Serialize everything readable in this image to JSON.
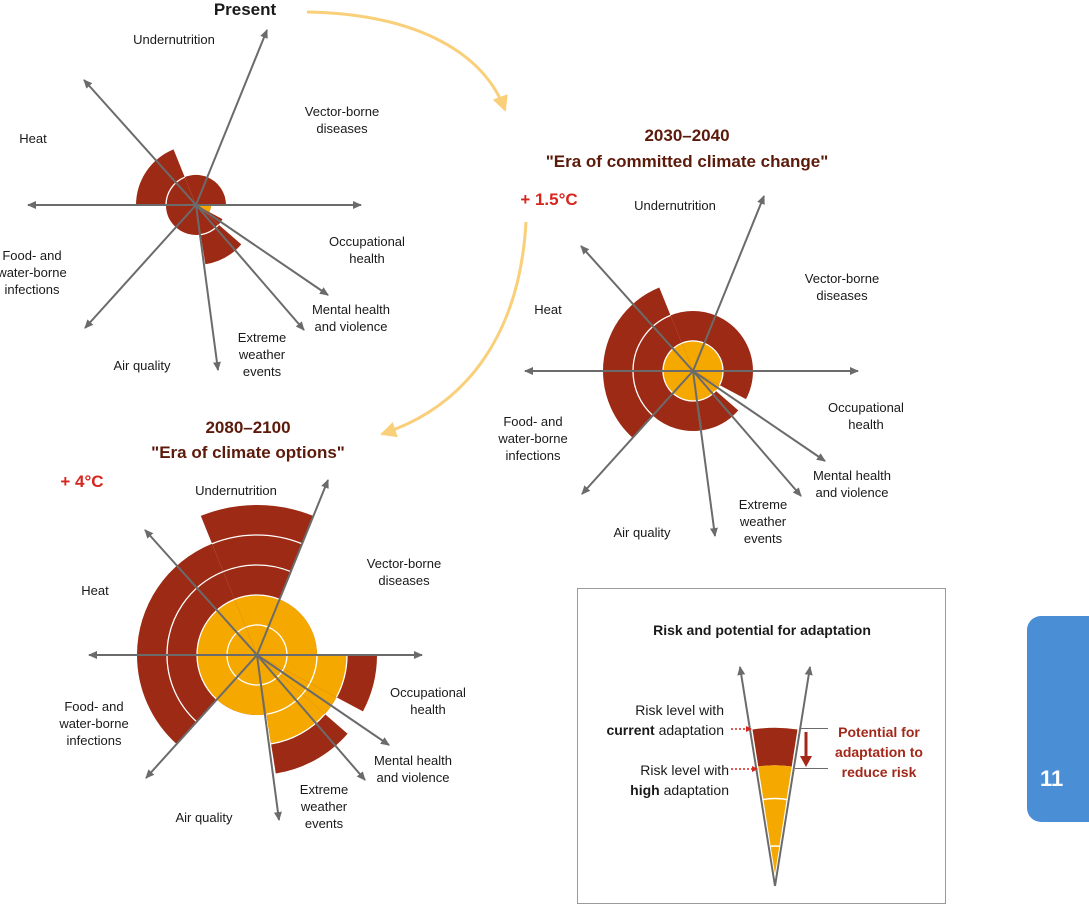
{
  "diagrams": [
    {
      "title": "Present",
      "subtitle": "",
      "temperature": "",
      "sectors": [
        {
          "label": "Undernutrition",
          "current": 1,
          "high": 0
        },
        {
          "label": "Vector-borne diseases",
          "current": 1,
          "high": 0
        },
        {
          "label": "Occupational health",
          "current": 0.5,
          "high": 0.5
        },
        {
          "label": "Mental health and violence",
          "current": 1,
          "high": 0
        },
        {
          "label": "Extreme weather events",
          "current": 2,
          "high": 0
        },
        {
          "label": "Air quality",
          "current": 1,
          "high": 0
        },
        {
          "label": "Food- and water-borne infections",
          "current": 1,
          "high": 0
        },
        {
          "label": "Heat",
          "current": 2,
          "high": 0
        }
      ]
    },
    {
      "title": "2030–2040",
      "subtitle": "\"Era of committed climate change\"",
      "temperature": "+ 1.5°C",
      "sectors": [
        {
          "label": "Undernutrition",
          "current": 2,
          "high": 1
        },
        {
          "label": "Vector-borne diseases",
          "current": 2,
          "high": 1
        },
        {
          "label": "Occupational health",
          "current": 2,
          "high": 1
        },
        {
          "label": "Mental health and violence",
          "current": 1,
          "high": 1
        },
        {
          "label": "Extreme weather events",
          "current": 2,
          "high": 1
        },
        {
          "label": "Air quality",
          "current": 2,
          "high": 1
        },
        {
          "label": "Food- and water-borne infections",
          "current": 3,
          "high": 1
        },
        {
          "label": "Heat",
          "current": 3,
          "high": 1
        }
      ]
    },
    {
      "title": "2080–2100",
      "subtitle": "\"Era of climate options\"",
      "temperature": "+ 4°C",
      "sectors": [
        {
          "label": "Undernutrition",
          "current": 5,
          "high": 2
        },
        {
          "label": "Vector-borne diseases",
          "current": 2,
          "high": 2
        },
        {
          "label": "Occupational health",
          "current": 4,
          "high": 3
        },
        {
          "label": "Mental health and violence",
          "current": 3,
          "high": 3
        },
        {
          "label": "Extreme weather events",
          "current": 4,
          "high": 3
        },
        {
          "label": "Air quality",
          "current": 2,
          "high": 2
        },
        {
          "label": "Food- and water-borne infections",
          "current": 4,
          "high": 2
        },
        {
          "label": "Heat",
          "current": 4,
          "high": 2
        }
      ]
    }
  ],
  "legend": {
    "title": "Risk and potential for adaptation",
    "current_line1": "Risk level with",
    "current_line2_bold": "current",
    "current_line2_rest": " adaptation",
    "high_line1": "Risk level with",
    "high_line2_bold": "high",
    "high_line2_rest": " adaptation",
    "potential_1": "Potential for",
    "potential_2": "adaptation to",
    "potential_3": "reduce risk"
  },
  "chapter_number": "11",
  "colors": {
    "current_risk": "#9c2a14",
    "high_adaptation": "#f5a800",
    "axis": "#6b6b6b",
    "arrow": "#f9cf7a",
    "title": "#5b1a0a",
    "temperature": "#d7261e",
    "legend_red": "#a3281a",
    "chapter_tab": "#4a8fd6"
  }
}
